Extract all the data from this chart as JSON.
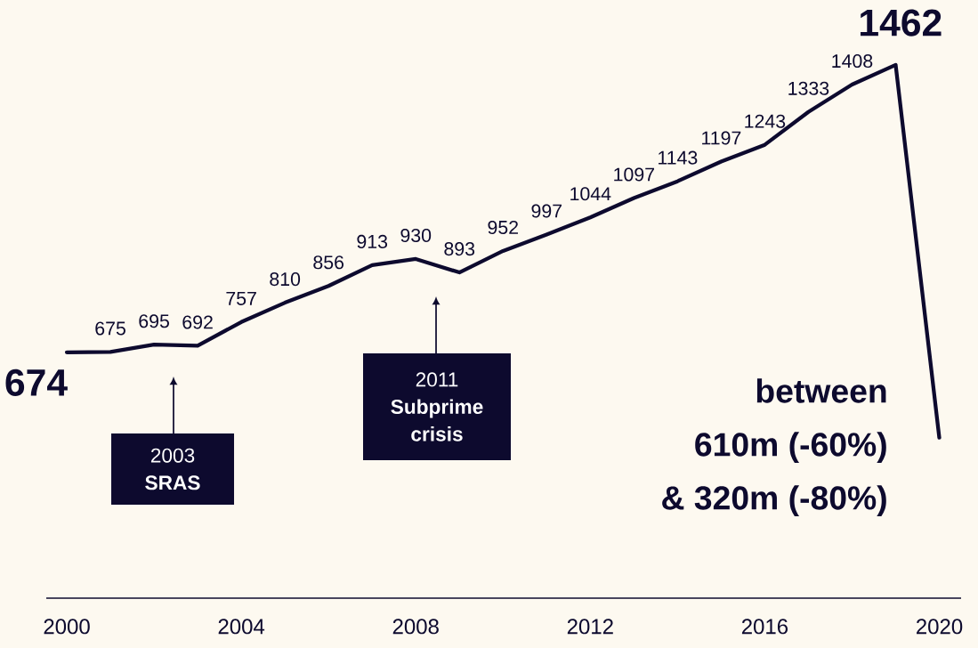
{
  "chart_data": {
    "type": "line",
    "x": [
      2000,
      2001,
      2002,
      2003,
      2004,
      2005,
      2006,
      2007,
      2008,
      2009,
      2010,
      2011,
      2012,
      2013,
      2014,
      2015,
      2016,
      2017,
      2018,
      2019,
      2020
    ],
    "values": [
      674,
      675,
      695,
      692,
      757,
      810,
      856,
      913,
      930,
      893,
      952,
      997,
      1044,
      1097,
      1143,
      1197,
      1243,
      1333,
      1408,
      1462,
      440
    ],
    "value_labels": [
      "674",
      "675",
      "695",
      "692",
      "757",
      "810",
      "856",
      "913",
      "930",
      "893",
      "952",
      "997",
      "1044",
      "1097",
      "1143",
      "1197",
      "1243",
      "1333",
      "1408",
      "1462",
      null
    ],
    "color": "#0d0a2e",
    "xlim": [
      1999.53,
      2020.5
    ],
    "xticks": [
      2000,
      2004,
      2008,
      2012,
      2016,
      2020
    ],
    "ylim": [
      0,
      1640
    ],
    "tick_labels": "x",
    "marker": "none",
    "line_style": "solid",
    "annotations": [
      "2003",
      "SRAS",
      "2011",
      "Subprime crisis",
      "between",
      "610m (-60%)",
      "& 320m (-80%)"
    ]
  }
}
